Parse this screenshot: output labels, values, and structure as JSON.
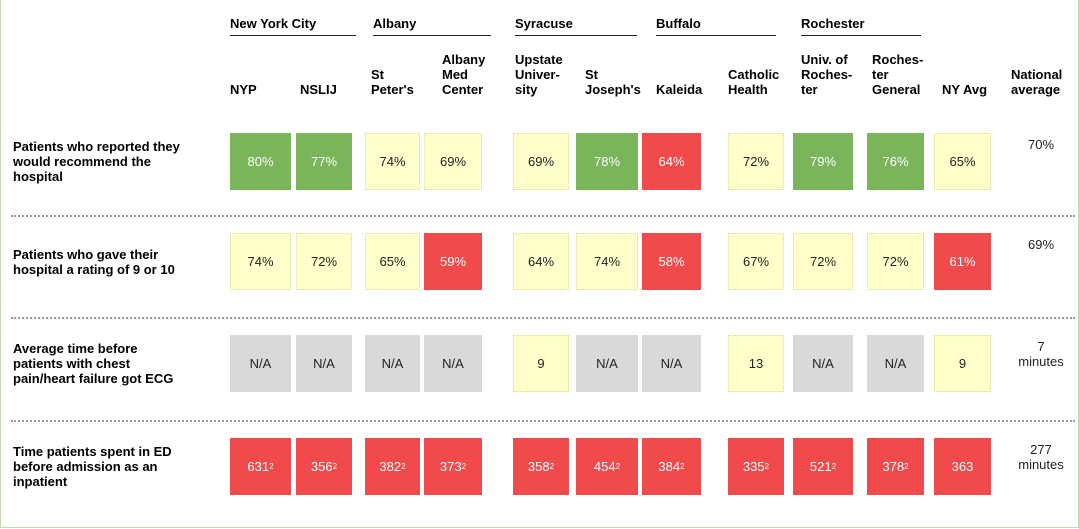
{
  "table": {
    "groups": [
      {
        "name": "New York City",
        "span": 2
      },
      {
        "name": "Albany",
        "span": 2
      },
      {
        "name": "Syracuse",
        "span": 2
      },
      {
        "name": "Buffalo",
        "span": 2
      },
      {
        "name": "Rochester",
        "span": 2
      }
    ],
    "columns": [
      "NYP",
      "NSLIJ",
      "St\nPeter's",
      "Albany\nMed\nCenter",
      "Upstate\nUniver-\nsity",
      "St\nJoseph's",
      "Kaleida",
      "Catholic\nHealth",
      "Univ. of\nRoches-\nter",
      "Roches-\nter\nGeneral",
      "NY Avg",
      "National\naverage"
    ],
    "rows": [
      {
        "label": "Patients who reported they\nwould recommend the\nhospital",
        "cells": [
          {
            "text": "80%",
            "color": "#7ab55c"
          },
          {
            "text": "77%",
            "color": "#7ab55c"
          },
          {
            "text": "74%",
            "color": "#ffffcc"
          },
          {
            "text": "69%",
            "color": "#ffffcc"
          },
          {
            "text": "69%",
            "color": "#ffffcc"
          },
          {
            "text": "78%",
            "color": "#7ab55c"
          },
          {
            "text": "64%",
            "color": "#f04a4c"
          },
          {
            "text": "72%",
            "color": "#ffffcc"
          },
          {
            "text": "79%",
            "color": "#7ab55c"
          },
          {
            "text": "76%",
            "color": "#7ab55c"
          },
          {
            "text": "65%",
            "color": "#ffffcc"
          },
          {
            "text": "70%"
          }
        ]
      },
      {
        "label": "Patients who gave their\nhospital a rating of 9 or 10",
        "cells": [
          {
            "text": "74%",
            "color": "#ffffcc"
          },
          {
            "text": "72%",
            "color": "#ffffcc"
          },
          {
            "text": "65%",
            "color": "#ffffcc"
          },
          {
            "text": "59%",
            "color": "#f04a4c"
          },
          {
            "text": "64%",
            "color": "#ffffcc"
          },
          {
            "text": "74%",
            "color": "#ffffcc"
          },
          {
            "text": "58%",
            "color": "#f04a4c"
          },
          {
            "text": "67%",
            "color": "#ffffcc"
          },
          {
            "text": "72%",
            "color": "#ffffcc"
          },
          {
            "text": "72%",
            "color": "#ffffcc"
          },
          {
            "text": "61%",
            "color": "#f04a4c"
          },
          {
            "text": "69%"
          }
        ]
      },
      {
        "label": "Average time before\npatients with chest\npain/heart failure got ECG",
        "cells": [
          {
            "text": "N/A",
            "color": "#d9d9d9"
          },
          {
            "text": "N/A",
            "color": "#d9d9d9"
          },
          {
            "text": "N/A",
            "color": "#d9d9d9"
          },
          {
            "text": "N/A",
            "color": "#d9d9d9"
          },
          {
            "text": "9",
            "color": "#ffffcc"
          },
          {
            "text": "N/A",
            "color": "#d9d9d9"
          },
          {
            "text": "N/A",
            "color": "#d9d9d9"
          },
          {
            "text": "13",
            "color": "#ffffcc"
          },
          {
            "text": "N/A",
            "color": "#d9d9d9"
          },
          {
            "text": "N/A",
            "color": "#d9d9d9"
          },
          {
            "text": "9",
            "color": "#ffffcc"
          },
          {
            "text": "7\nminutes"
          }
        ]
      },
      {
        "label": "Time patients spent in ED\nbefore admission as an\ninpatient",
        "cells": [
          {
            "text": "631",
            "note": "2",
            "color": "#f04a4c"
          },
          {
            "text": "356",
            "note": "2",
            "color": "#f04a4c"
          },
          {
            "text": "382",
            "note": "2",
            "color": "#f04a4c"
          },
          {
            "text": "373",
            "note": "2",
            "color": "#f04a4c"
          },
          {
            "text": "358",
            "note": "2",
            "color": "#f04a4c"
          },
          {
            "text": "454",
            "note": "2",
            "color": "#f04a4c"
          },
          {
            "text": "384",
            "note": "2",
            "color": "#f04a4c"
          },
          {
            "text": "335",
            "note": "2",
            "color": "#f04a4c"
          },
          {
            "text": "521",
            "note": "2",
            "color": "#f04a4c"
          },
          {
            "text": "378",
            "note": "2",
            "color": "#f04a4c"
          },
          {
            "text": "363",
            "color": "#f04a4c"
          },
          {
            "text": "277\nminutes"
          }
        ]
      }
    ]
  }
}
